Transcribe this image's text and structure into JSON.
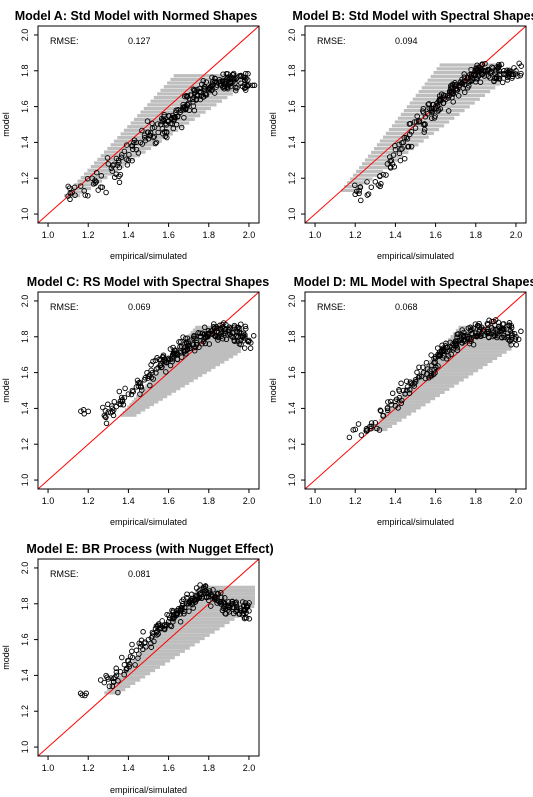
{
  "chart_data": [
    {
      "type": "scatter",
      "title": "Model A: Std Model with Normed Shapes",
      "xlabel": "empirical/simulated",
      "ylabel": "model",
      "xlim": [
        0.95,
        2.05
      ],
      "ylim": [
        0.95,
        2.05
      ],
      "xticks": [
        "1.0",
        "1.2",
        "1.4",
        "1.6",
        "1.8",
        "2.0"
      ],
      "yticks": [
        "1.0",
        "1.2",
        "1.4",
        "1.6",
        "1.8",
        "2.0"
      ],
      "rmse_label": "RMSE:",
      "rmse_value": "0.127",
      "reference_line": "y = x (red)",
      "sim_color": "#bebebe",
      "points": [
        [
          1.1,
          1.1
        ],
        [
          1.12,
          1.12
        ],
        [
          1.18,
          1.13
        ],
        [
          1.22,
          1.2
        ],
        [
          1.24,
          1.18
        ],
        [
          1.27,
          1.15
        ],
        [
          1.3,
          1.28
        ],
        [
          1.32,
          1.24
        ],
        [
          1.34,
          1.31
        ],
        [
          1.36,
          1.22
        ],
        [
          1.38,
          1.35
        ],
        [
          1.4,
          1.3
        ],
        [
          1.42,
          1.38
        ],
        [
          1.44,
          1.36
        ],
        [
          1.46,
          1.4
        ],
        [
          1.48,
          1.44
        ],
        [
          1.5,
          1.42
        ],
        [
          1.52,
          1.48
        ],
        [
          1.54,
          1.4
        ],
        [
          1.56,
          1.5
        ],
        [
          1.58,
          1.46
        ],
        [
          1.6,
          1.52
        ],
        [
          1.62,
          1.55
        ],
        [
          1.64,
          1.5
        ],
        [
          1.66,
          1.58
        ],
        [
          1.68,
          1.6
        ],
        [
          1.7,
          1.62
        ],
        [
          1.72,
          1.64
        ],
        [
          1.74,
          1.66
        ],
        [
          1.76,
          1.68
        ],
        [
          1.78,
          1.7
        ],
        [
          1.8,
          1.7
        ],
        [
          1.82,
          1.72
        ],
        [
          1.84,
          1.72
        ],
        [
          1.86,
          1.74
        ],
        [
          1.88,
          1.74
        ],
        [
          1.9,
          1.75
        ],
        [
          1.92,
          1.74
        ],
        [
          1.94,
          1.76
        ],
        [
          1.96,
          1.73
        ],
        [
          1.98,
          1.75
        ],
        [
          2.0,
          1.72
        ]
      ],
      "sim_band": {
        "x_from": 1.08,
        "x_to": 1.96,
        "y_from": 1.1,
        "y_to": 1.77
      }
    },
    {
      "type": "scatter",
      "title": "Model B: Std Model with Spectral Shapes",
      "xlabel": "empirical/simulated",
      "ylabel": "model",
      "xlim": [
        0.95,
        2.05
      ],
      "ylim": [
        0.95,
        2.05
      ],
      "xticks": [
        "1.0",
        "1.2",
        "1.4",
        "1.6",
        "1.8",
        "2.0"
      ],
      "yticks": [
        "1.0",
        "1.2",
        "1.4",
        "1.6",
        "1.8",
        "2.0"
      ],
      "rmse_label": "RMSE:",
      "rmse_value": "0.094",
      "reference_line": "y = x (red)",
      "sim_color": "#bebebe",
      "points": [
        [
          1.2,
          1.11
        ],
        [
          1.22,
          1.13
        ],
        [
          1.28,
          1.15
        ],
        [
          1.3,
          1.18
        ],
        [
          1.34,
          1.22
        ],
        [
          1.36,
          1.28
        ],
        [
          1.38,
          1.3
        ],
        [
          1.4,
          1.36
        ],
        [
          1.42,
          1.34
        ],
        [
          1.44,
          1.4
        ],
        [
          1.46,
          1.42
        ],
        [
          1.48,
          1.46
        ],
        [
          1.5,
          1.48
        ],
        [
          1.52,
          1.52
        ],
        [
          1.54,
          1.5
        ],
        [
          1.56,
          1.56
        ],
        [
          1.58,
          1.58
        ],
        [
          1.6,
          1.6
        ],
        [
          1.62,
          1.64
        ],
        [
          1.64,
          1.62
        ],
        [
          1.66,
          1.66
        ],
        [
          1.68,
          1.68
        ],
        [
          1.7,
          1.7
        ],
        [
          1.72,
          1.72
        ],
        [
          1.74,
          1.74
        ],
        [
          1.76,
          1.76
        ],
        [
          1.78,
          1.78
        ],
        [
          1.8,
          1.78
        ],
        [
          1.82,
          1.8
        ],
        [
          1.84,
          1.8
        ],
        [
          1.86,
          1.8
        ],
        [
          1.88,
          1.79
        ],
        [
          1.9,
          1.8
        ],
        [
          1.92,
          1.78
        ],
        [
          1.94,
          1.8
        ],
        [
          1.96,
          1.79
        ],
        [
          1.98,
          1.78
        ],
        [
          2.0,
          1.8
        ]
      ],
      "sim_band": {
        "x_from": 1.13,
        "x_to": 1.92,
        "y_from": 1.13,
        "y_to": 1.83
      }
    },
    {
      "type": "scatter",
      "title": "Model C: RS Model with Spectral Shapes",
      "xlabel": "empirical/simulated",
      "ylabel": "model",
      "xlim": [
        0.95,
        2.05
      ],
      "ylim": [
        0.95,
        2.05
      ],
      "xticks": [
        "1.0",
        "1.2",
        "1.4",
        "1.6",
        "1.8",
        "2.0"
      ],
      "yticks": [
        "1.0",
        "1.2",
        "1.4",
        "1.6",
        "1.8",
        "2.0"
      ],
      "rmse_label": "RMSE:",
      "rmse_value": "0.069",
      "reference_line": "y = x (red)",
      "sim_color": "#bebebe",
      "points": [
        [
          1.18,
          1.37
        ],
        [
          1.28,
          1.36
        ],
        [
          1.3,
          1.38
        ],
        [
          1.32,
          1.4
        ],
        [
          1.34,
          1.41
        ],
        [
          1.36,
          1.44
        ],
        [
          1.38,
          1.46
        ],
        [
          1.4,
          1.48
        ],
        [
          1.42,
          1.5
        ],
        [
          1.44,
          1.52
        ],
        [
          1.46,
          1.54
        ],
        [
          1.48,
          1.56
        ],
        [
          1.5,
          1.58
        ],
        [
          1.52,
          1.6
        ],
        [
          1.54,
          1.62
        ],
        [
          1.56,
          1.64
        ],
        [
          1.58,
          1.66
        ],
        [
          1.6,
          1.68
        ],
        [
          1.62,
          1.7
        ],
        [
          1.64,
          1.7
        ],
        [
          1.66,
          1.72
        ],
        [
          1.68,
          1.74
        ],
        [
          1.7,
          1.76
        ],
        [
          1.72,
          1.76
        ],
        [
          1.74,
          1.78
        ],
        [
          1.76,
          1.8
        ],
        [
          1.78,
          1.8
        ],
        [
          1.8,
          1.82
        ],
        [
          1.82,
          1.82
        ],
        [
          1.84,
          1.83
        ],
        [
          1.86,
          1.84
        ],
        [
          1.88,
          1.83
        ],
        [
          1.9,
          1.84
        ],
        [
          1.92,
          1.82
        ],
        [
          1.94,
          1.83
        ],
        [
          1.96,
          1.82
        ],
        [
          1.98,
          1.8
        ],
        [
          2.0,
          1.78
        ]
      ],
      "sim_band": {
        "x_from": 1.36,
        "x_to": 1.96,
        "y_from": 1.36,
        "y_to": 1.85
      }
    },
    {
      "type": "scatter",
      "title": "Model D: ML Model with Spectral Shapes",
      "xlabel": "empirical/simulated",
      "ylabel": "model",
      "xlim": [
        0.95,
        2.05
      ],
      "ylim": [
        0.95,
        2.05
      ],
      "xticks": [
        "1.0",
        "1.2",
        "1.4",
        "1.6",
        "1.8",
        "2.0"
      ],
      "yticks": [
        "1.0",
        "1.2",
        "1.4",
        "1.6",
        "1.8",
        "2.0"
      ],
      "rmse_label": "RMSE:",
      "rmse_value": "0.068",
      "reference_line": "y = x (red)",
      "sim_color": "#bebebe",
      "points": [
        [
          1.19,
          1.28
        ],
        [
          1.26,
          1.28
        ],
        [
          1.28,
          1.3
        ],
        [
          1.3,
          1.32
        ],
        [
          1.34,
          1.36
        ],
        [
          1.36,
          1.4
        ],
        [
          1.38,
          1.42
        ],
        [
          1.4,
          1.44
        ],
        [
          1.42,
          1.46
        ],
        [
          1.44,
          1.5
        ],
        [
          1.46,
          1.52
        ],
        [
          1.48,
          1.54
        ],
        [
          1.5,
          1.56
        ],
        [
          1.52,
          1.58
        ],
        [
          1.54,
          1.6
        ],
        [
          1.56,
          1.62
        ],
        [
          1.58,
          1.64
        ],
        [
          1.6,
          1.68
        ],
        [
          1.62,
          1.7
        ],
        [
          1.64,
          1.72
        ],
        [
          1.66,
          1.74
        ],
        [
          1.68,
          1.74
        ],
        [
          1.7,
          1.76
        ],
        [
          1.72,
          1.78
        ],
        [
          1.74,
          1.8
        ],
        [
          1.76,
          1.8
        ],
        [
          1.78,
          1.82
        ],
        [
          1.8,
          1.82
        ],
        [
          1.82,
          1.84
        ],
        [
          1.84,
          1.84
        ],
        [
          1.86,
          1.84
        ],
        [
          1.88,
          1.85
        ],
        [
          1.9,
          1.84
        ],
        [
          1.92,
          1.83
        ],
        [
          1.94,
          1.84
        ],
        [
          1.96,
          1.82
        ],
        [
          1.98,
          1.82
        ],
        [
          2.0,
          1.8
        ]
      ],
      "sim_band": {
        "x_from": 1.28,
        "x_to": 1.98,
        "y_from": 1.28,
        "y_to": 1.85
      }
    },
    {
      "type": "scatter",
      "title": "Model E: BR Process (with Nugget Effect)",
      "xlabel": "empirical/simulated",
      "ylabel": "model",
      "xlim": [
        0.95,
        2.05
      ],
      "ylim": [
        0.95,
        2.05
      ],
      "xticks": [
        "1.0",
        "1.2",
        "1.4",
        "1.6",
        "1.8",
        "2.0"
      ],
      "yticks": [
        "1.0",
        "1.2",
        "1.4",
        "1.6",
        "1.8",
        "2.0"
      ],
      "rmse_label": "RMSE:",
      "rmse_value": "0.081",
      "reference_line": "y = x (red)",
      "sim_color": "#bebebe",
      "points": [
        [
          1.19,
          1.3
        ],
        [
          1.28,
          1.36
        ],
        [
          1.3,
          1.38
        ],
        [
          1.32,
          1.34
        ],
        [
          1.34,
          1.4
        ],
        [
          1.36,
          1.42
        ],
        [
          1.38,
          1.46
        ],
        [
          1.4,
          1.48
        ],
        [
          1.42,
          1.5
        ],
        [
          1.44,
          1.54
        ],
        [
          1.46,
          1.56
        ],
        [
          1.48,
          1.58
        ],
        [
          1.5,
          1.6
        ],
        [
          1.52,
          1.62
        ],
        [
          1.54,
          1.64
        ],
        [
          1.56,
          1.66
        ],
        [
          1.58,
          1.68
        ],
        [
          1.6,
          1.7
        ],
        [
          1.62,
          1.72
        ],
        [
          1.64,
          1.74
        ],
        [
          1.66,
          1.76
        ],
        [
          1.68,
          1.78
        ],
        [
          1.7,
          1.8
        ],
        [
          1.72,
          1.82
        ],
        [
          1.74,
          1.84
        ],
        [
          1.76,
          1.86
        ],
        [
          1.78,
          1.86
        ],
        [
          1.8,
          1.86
        ],
        [
          1.82,
          1.84
        ],
        [
          1.84,
          1.82
        ],
        [
          1.86,
          1.8
        ],
        [
          1.88,
          1.8
        ],
        [
          1.9,
          1.78
        ],
        [
          1.92,
          1.8
        ],
        [
          1.94,
          1.78
        ],
        [
          1.96,
          1.76
        ],
        [
          1.98,
          1.76
        ],
        [
          2.0,
          1.76
        ]
      ],
      "sim_band": {
        "x_from": 1.28,
        "x_to": 2.03,
        "y_from": 1.3,
        "y_to": 1.89
      }
    }
  ]
}
